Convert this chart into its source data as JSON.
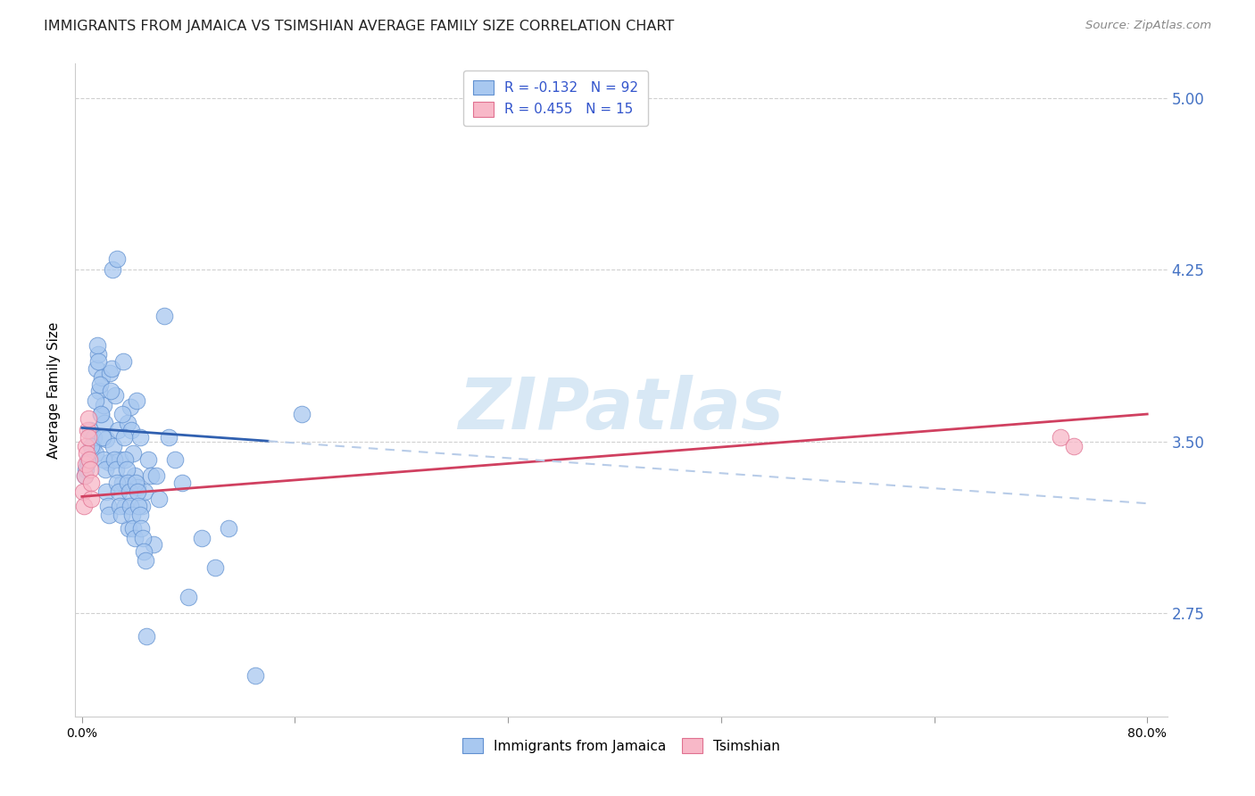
{
  "title": "IMMIGRANTS FROM JAMAICA VS TSIMSHIAN AVERAGE FAMILY SIZE CORRELATION CHART",
  "source": "Source: ZipAtlas.com",
  "ylabel": "Average Family Size",
  "right_yticks": [
    2.75,
    3.5,
    4.25,
    5.0
  ],
  "xlim": [
    0.0,
    80.0
  ],
  "ylim": [
    2.3,
    5.15
  ],
  "legend_r1": "R = -0.132   N = 92",
  "legend_r2": "R = 0.455   N = 15",
  "blue_scatter_color": "#a8c8f0",
  "blue_scatter_edge": "#6090d0",
  "pink_scatter_color": "#f8b8c8",
  "pink_scatter_edge": "#e07090",
  "blue_line_color": "#3060b0",
  "pink_line_color": "#d04060",
  "dashed_color": "#b8cce8",
  "watermark": "ZIPatlas",
  "watermark_color": "#d8e8f5",
  "grid_color": "#d0d0d0",
  "jamaica_x": [
    0.3,
    0.5,
    0.6,
    0.8,
    0.9,
    1.0,
    1.1,
    1.2,
    1.3,
    1.4,
    1.5,
    1.6,
    1.7,
    1.8,
    2.0,
    2.1,
    2.2,
    2.3,
    2.5,
    2.6,
    2.7,
    2.8,
    3.0,
    3.1,
    3.2,
    3.4,
    3.5,
    3.6,
    3.7,
    3.8,
    4.0,
    4.1,
    4.2,
    4.4,
    4.5,
    4.7,
    5.0,
    5.2,
    5.4,
    5.6,
    5.8,
    6.2,
    6.5,
    7.0,
    7.5,
    8.0,
    9.0,
    10.0,
    11.0,
    13.0,
    0.2,
    0.4,
    0.7,
    1.05,
    1.15,
    1.25,
    1.35,
    1.45,
    1.55,
    1.65,
    1.75,
    1.85,
    1.95,
    2.05,
    2.15,
    2.35,
    2.45,
    2.55,
    2.65,
    2.75,
    2.85,
    2.95,
    3.05,
    3.15,
    3.25,
    3.35,
    3.45,
    3.55,
    3.65,
    3.75,
    3.85,
    3.95,
    4.05,
    4.15,
    4.25,
    4.35,
    4.45,
    4.55,
    4.65,
    4.75,
    4.85,
    16.5
  ],
  "jamaica_y": [
    3.38,
    3.42,
    3.55,
    3.48,
    3.52,
    3.45,
    3.82,
    3.88,
    3.72,
    3.62,
    3.78,
    3.66,
    3.58,
    3.51,
    3.41,
    3.8,
    3.82,
    4.25,
    3.7,
    4.3,
    3.55,
    3.42,
    3.32,
    3.85,
    3.22,
    3.58,
    3.12,
    3.65,
    3.55,
    3.45,
    3.35,
    3.68,
    3.3,
    3.52,
    3.22,
    3.28,
    3.42,
    3.35,
    3.05,
    3.35,
    3.25,
    4.05,
    3.52,
    3.42,
    3.32,
    2.82,
    3.08,
    2.95,
    3.12,
    2.48,
    3.35,
    3.41,
    3.48,
    3.68,
    3.92,
    3.85,
    3.75,
    3.62,
    3.52,
    3.42,
    3.38,
    3.28,
    3.22,
    3.18,
    3.72,
    3.48,
    3.42,
    3.38,
    3.32,
    3.28,
    3.22,
    3.18,
    3.62,
    3.52,
    3.42,
    3.38,
    3.32,
    3.28,
    3.22,
    3.18,
    3.12,
    3.08,
    3.32,
    3.28,
    3.22,
    3.18,
    3.12,
    3.08,
    3.02,
    2.98,
    2.65,
    3.62
  ],
  "tsimshian_x": [
    0.1,
    0.15,
    0.2,
    0.25,
    0.3,
    0.35,
    0.4,
    0.45,
    0.5,
    0.55,
    0.6,
    0.65,
    0.7,
    73.5,
    74.5
  ],
  "tsimshian_y": [
    3.28,
    3.22,
    3.35,
    3.4,
    3.48,
    3.45,
    3.55,
    3.6,
    3.52,
    3.42,
    3.38,
    3.32,
    3.25,
    3.52,
    3.48
  ],
  "blue_trend_x0": 0.0,
  "blue_trend_y0": 3.56,
  "blue_trend_x1": 80.0,
  "blue_trend_y1": 3.23,
  "blue_solid_end": 14.0,
  "pink_trend_x0": 0.0,
  "pink_trend_y0": 3.26,
  "pink_trend_x1": 80.0,
  "pink_trend_y1": 3.62
}
